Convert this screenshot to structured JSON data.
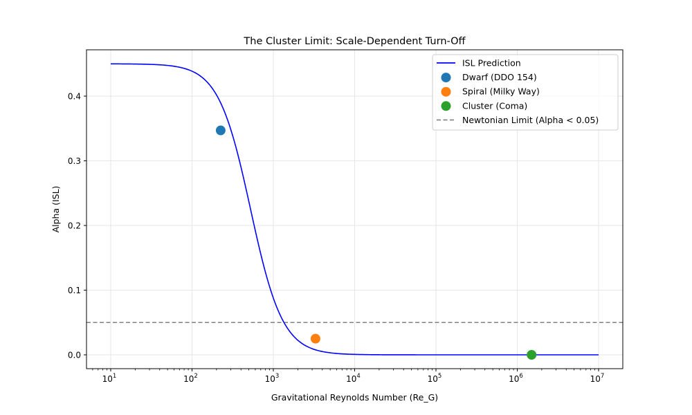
{
  "chart_data": {
    "type": "line",
    "title": "The Cluster Limit: Scale-Dependent Turn-Off",
    "xlabel": "Gravitational Reynolds Number (Re_G)",
    "ylabel": "Alpha (ISL)",
    "xscale": "log",
    "xlim": [
      5,
      20000000
    ],
    "ylim": [
      -0.0225,
      0.4725
    ],
    "x_ticks": [
      10,
      100,
      1000,
      10000,
      100000,
      1000000,
      10000000
    ],
    "x_tick_labels": [
      {
        "base": "10",
        "exp": "1"
      },
      {
        "base": "10",
        "exp": "2"
      },
      {
        "base": "10",
        "exp": "3"
      },
      {
        "base": "10",
        "exp": "4"
      },
      {
        "base": "10",
        "exp": "5"
      },
      {
        "base": "10",
        "exp": "6"
      },
      {
        "base": "10",
        "exp": "7"
      }
    ],
    "y_ticks": [
      0.0,
      0.1,
      0.2,
      0.3,
      0.4
    ],
    "y_tick_labels": [
      "0.0",
      "0.1",
      "0.2",
      "0.3",
      "0.4"
    ],
    "grid": true,
    "legend_position": "upper right",
    "series": [
      {
        "name": "ISL Prediction",
        "kind": "line",
        "color": "#0000ff",
        "x": [
          10,
          20,
          50,
          100,
          150,
          200,
          300,
          400,
          500,
          700,
          1000,
          1500,
          2000,
          3000,
          5000,
          10000,
          30000,
          100000,
          1000000,
          10000000
        ],
        "y": [
          0.449,
          0.447,
          0.437,
          0.413,
          0.385,
          0.355,
          0.297,
          0.25,
          0.213,
          0.155,
          0.105,
          0.063,
          0.042,
          0.023,
          0.01,
          0.003,
          0.0004,
          5e-05,
          0.0,
          0.0
        ]
      },
      {
        "name": "Dwarf (DDO 154)",
        "kind": "scatter",
        "color": "#1f77b4",
        "x": [
          225
        ],
        "y": [
          0.347
        ]
      },
      {
        "name": "Spiral (Milky Way)",
        "kind": "scatter",
        "color": "#ff7f0e",
        "x": [
          3300
        ],
        "y": [
          0.025
        ]
      },
      {
        "name": "Cluster (Coma)",
        "kind": "scatter",
        "color": "#2ca02c",
        "x": [
          1500000
        ],
        "y": [
          0.0
        ]
      },
      {
        "name": "Newtonian Limit (Alpha < 0.05)",
        "kind": "hline",
        "color": "#808080",
        "linestyle": "dashed",
        "y": 0.05
      }
    ]
  },
  "legend": {
    "items": [
      {
        "label": "ISL Prediction",
        "marker": "line",
        "color": "#0000ff"
      },
      {
        "label": "Dwarf (DDO 154)",
        "marker": "dot",
        "color": "#1f77b4"
      },
      {
        "label": "Spiral (Milky Way)",
        "marker": "dot",
        "color": "#ff7f0e"
      },
      {
        "label": "Cluster (Coma)",
        "marker": "dot",
        "color": "#2ca02c"
      },
      {
        "label": "Newtonian Limit (Alpha < 0.05)",
        "marker": "dashed",
        "color": "#808080"
      }
    ]
  }
}
